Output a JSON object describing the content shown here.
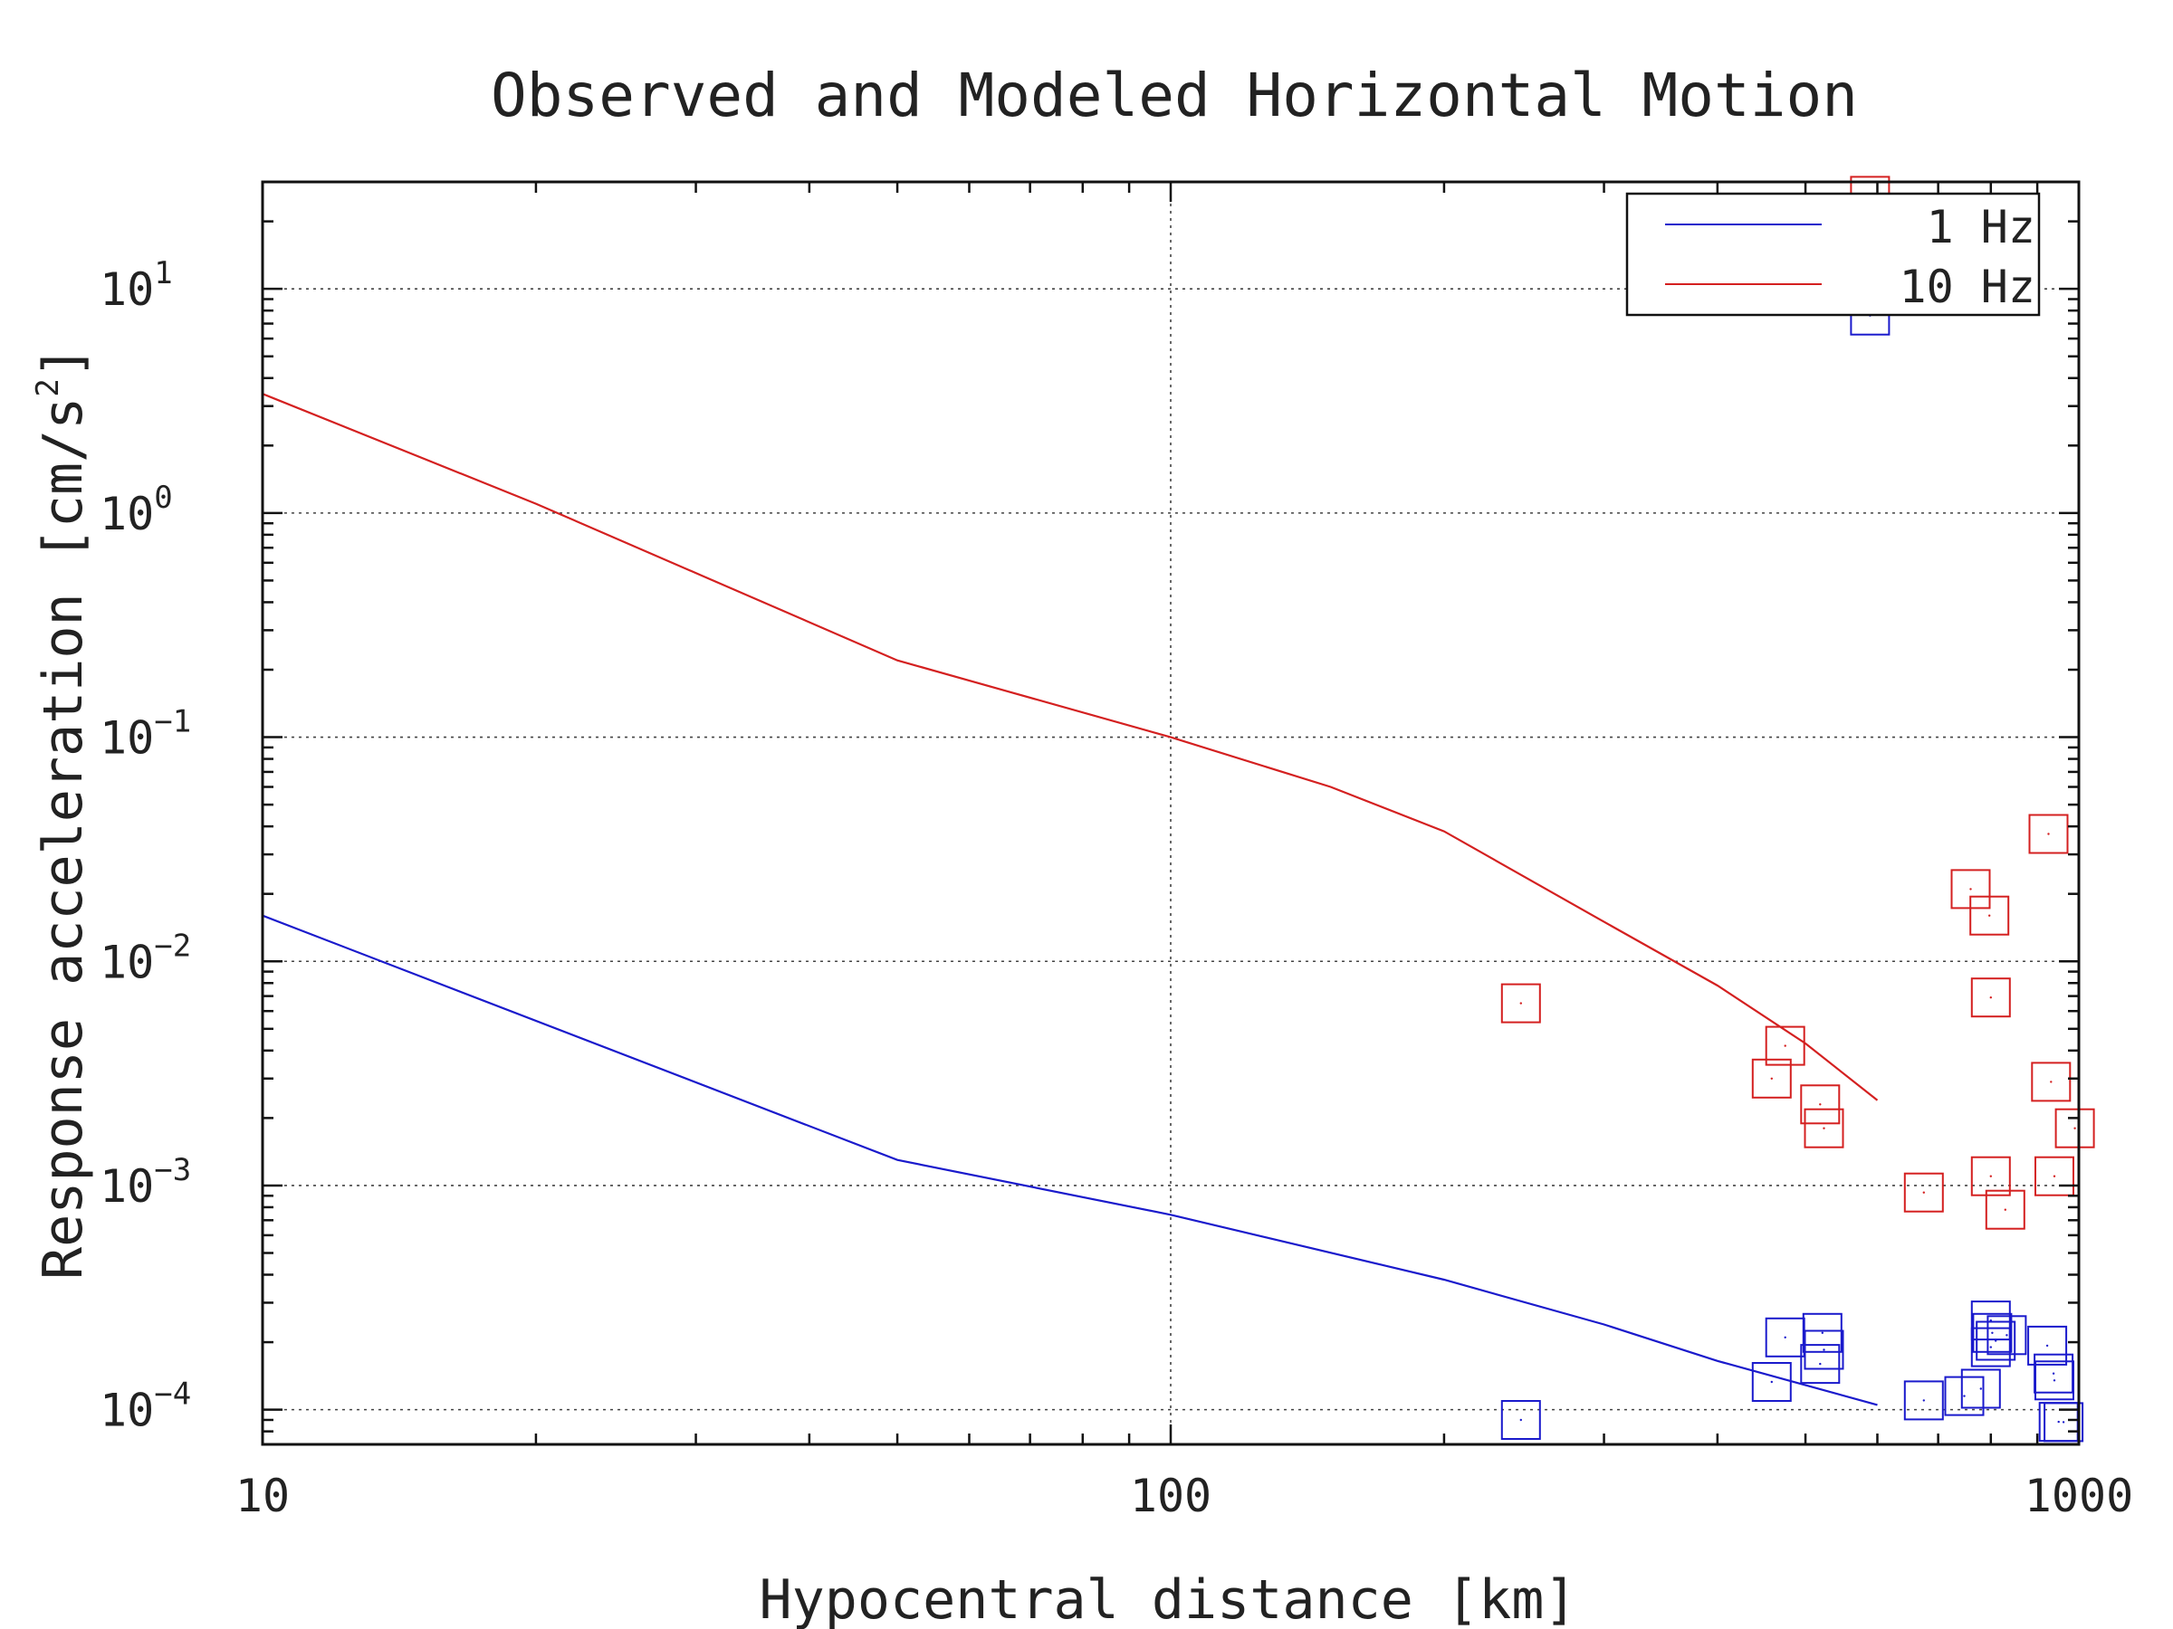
{
  "chart_data": {
    "type": "scatter",
    "title": "Observed and Modeled Horizontal Motion",
    "xlabel": "Hypocentral distance [km]",
    "ylabel_prefix": "Response acceleration [cm/s",
    "ylabel_sup": "2",
    "ylabel_suffix": "]",
    "x_scale": "log",
    "y_scale": "log",
    "xlim": [
      10,
      1000
    ],
    "ylim": [
      7e-05,
      30
    ],
    "grid": true,
    "legend_position": "top-right",
    "x_ticks": [
      {
        "value": 10,
        "label": "10"
      },
      {
        "value": 100,
        "label": "100"
      },
      {
        "value": 1000,
        "label": "1000"
      }
    ],
    "y_ticks": [
      {
        "value": 10,
        "base": "10",
        "exp": "1"
      },
      {
        "value": 1,
        "base": "10",
        "exp": "0"
      },
      {
        "value": 0.1,
        "base": "10",
        "exp": "−1"
      },
      {
        "value": 0.01,
        "base": "10",
        "exp": "−2"
      },
      {
        "value": 0.001,
        "base": "10",
        "exp": "−3"
      },
      {
        "value": 0.0001,
        "base": "10",
        "exp": "−4"
      }
    ],
    "series": [
      {
        "name": "1 Hz",
        "color": "#1a1acc",
        "model": {
          "x": [
            10,
            50,
            100,
            200,
            300,
            400,
            600
          ],
          "y": [
            0.016,
            0.0013,
            0.00074,
            0.00038,
            0.00024,
            0.000165,
            0.000105
          ]
        },
        "observed": {
          "x": [
            243,
            459,
            475,
            519,
            522,
            524,
            675,
            748,
            780,
            800,
            800,
            803,
            810,
            833,
            923,
            938,
            940,
            962,
            950
          ],
          "y": [
            9e-05,
            0.000133,
            0.00021,
            0.00016,
            0.00022,
            0.000185,
            0.00011,
            0.000115,
            0.000124,
            0.00019,
            0.00025,
            0.00022,
            0.000203,
            0.000215,
            0.000193,
            0.000145,
            0.000135,
            8.8e-05,
            8.82e-05
          ]
        }
      },
      {
        "name": "10 Hz",
        "color": "#d42020",
        "model": {
          "x": [
            10,
            20,
            50,
            100,
            150,
            200,
            300,
            400,
            500,
            600
          ],
          "y": [
            3.4,
            1.1,
            0.22,
            0.1,
            0.06,
            0.038,
            0.015,
            0.0078,
            0.0043,
            0.0024
          ]
        },
        "observed": {
          "x": [
            243,
            459,
            475,
            519,
            524,
            589,
            675,
            760,
            797,
            800,
            800,
            830,
            926,
            932,
            940,
            990
          ],
          "y": [
            0.0065,
            0.003,
            0.0042,
            0.0023,
            0.0018,
            26,
            0.00093,
            0.021,
            0.016,
            0.0069,
            0.0011,
            0.00078,
            0.037,
            0.0029,
            0.0011,
            0.0018
          ]
        }
      },
      {
        "name": "",
        "color": "#1a1acc",
        "observed": {
          "x": [
            589
          ],
          "y": [
            7.6
          ]
        }
      }
    ]
  }
}
